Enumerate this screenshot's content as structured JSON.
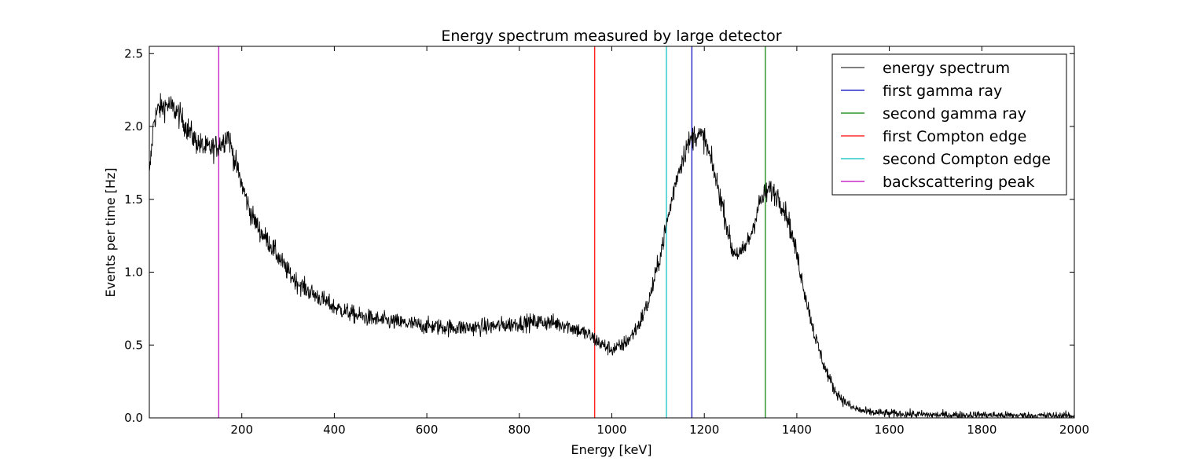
{
  "chart_data": {
    "type": "line",
    "title": "Energy spectrum measured by large detector",
    "xlabel": "Energy [keV]",
    "ylabel": "Events per time [Hz]",
    "xlim": [
      0,
      2000
    ],
    "ylim": [
      0,
      2.55
    ],
    "x_ticks": [
      200,
      400,
      600,
      800,
      1000,
      1200,
      1400,
      1600,
      1800,
      2000
    ],
    "x_tick_labels": [
      "200",
      "400",
      "600",
      "800",
      "1000",
      "1200",
      "1400",
      "1600",
      "1800",
      "2000"
    ],
    "y_ticks": [
      0.0,
      0.5,
      1.0,
      1.5,
      2.0,
      2.5
    ],
    "y_tick_labels": [
      "0.0",
      "0.5",
      "1.0",
      "1.5",
      "2.0",
      "2.5"
    ],
    "grid": false,
    "legend_position": "top-right",
    "spectrum": {
      "name": "energy spectrum",
      "color": "#000000",
      "x": [
        0,
        10,
        20,
        40,
        60,
        80,
        100,
        120,
        140,
        160,
        170,
        180,
        200,
        220,
        240,
        260,
        280,
        300,
        320,
        340,
        360,
        380,
        400,
        450,
        500,
        550,
        600,
        650,
        700,
        750,
        800,
        850,
        900,
        950,
        980,
        1000,
        1020,
        1040,
        1060,
        1080,
        1100,
        1120,
        1140,
        1160,
        1180,
        1200,
        1220,
        1240,
        1260,
        1280,
        1300,
        1320,
        1340,
        1360,
        1380,
        1400,
        1420,
        1440,
        1460,
        1480,
        1500,
        1520,
        1550,
        1600,
        1650,
        1700,
        1800,
        1900,
        2000
      ],
      "y": [
        1.65,
        2.05,
        2.12,
        2.15,
        2.1,
        2.0,
        1.9,
        1.85,
        1.85,
        1.9,
        1.95,
        1.82,
        1.6,
        1.4,
        1.28,
        1.2,
        1.1,
        1.0,
        0.93,
        0.88,
        0.84,
        0.8,
        0.76,
        0.7,
        0.67,
        0.65,
        0.63,
        0.62,
        0.62,
        0.63,
        0.65,
        0.66,
        0.64,
        0.57,
        0.5,
        0.47,
        0.49,
        0.55,
        0.65,
        0.8,
        1.05,
        1.35,
        1.65,
        1.85,
        1.95,
        1.92,
        1.7,
        1.45,
        1.15,
        1.12,
        1.25,
        1.48,
        1.57,
        1.52,
        1.38,
        1.12,
        0.82,
        0.55,
        0.35,
        0.2,
        0.12,
        0.07,
        0.04,
        0.03,
        0.025,
        0.02,
        0.02,
        0.015,
        0.015
      ]
    },
    "vlines": [
      {
        "name": "first gamma ray",
        "x": 1173,
        "color": "#0000bf"
      },
      {
        "name": "second gamma ray",
        "x": 1332,
        "color": "#008000"
      },
      {
        "name": "first Compton edge",
        "x": 963,
        "color": "#ff0000"
      },
      {
        "name": "second Compton edge",
        "x": 1118,
        "color": "#00bfbf"
      },
      {
        "name": "backscattering peak",
        "x": 150,
        "color": "#bf00bf"
      }
    ],
    "legend": [
      "energy spectrum",
      "first gamma ray",
      "second gamma ray",
      "first Compton edge",
      "second Compton edge",
      "backscattering peak"
    ]
  }
}
